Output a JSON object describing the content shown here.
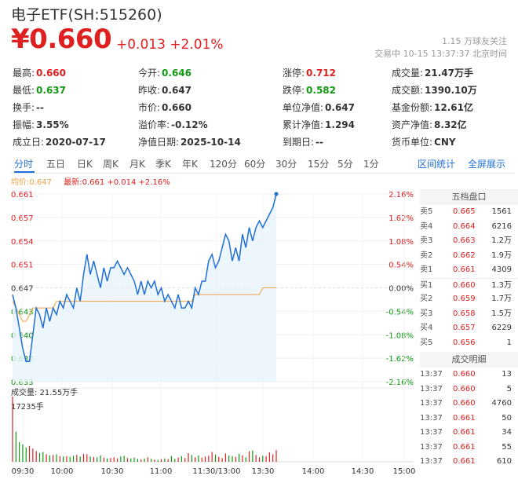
{
  "header": {
    "title": "电子ETF(SH:515260)",
    "price": "¥0.660",
    "change": "+0.013 +2.01%",
    "followers": "1.15 万球友关注",
    "trade_status": "交易中 10-15 13:37:37 北京时间"
  },
  "quote": {
    "rows": [
      [
        {
          "label": "最高:",
          "value": "0.660",
          "color": "red"
        },
        {
          "label": "今开:",
          "value": "0.646",
          "color": "green"
        },
        {
          "label": "涨停:",
          "value": "0.712",
          "color": "red"
        },
        {
          "label": "成交量:",
          "value": "21.47万手",
          "color": "normal"
        }
      ],
      [
        {
          "label": "最低:",
          "value": "0.637",
          "color": "green"
        },
        {
          "label": "昨收:",
          "value": "0.647",
          "color": "normal"
        },
        {
          "label": "跌停:",
          "value": "0.582",
          "color": "green"
        },
        {
          "label": "成交额:",
          "value": "1390.10万",
          "color": "normal"
        }
      ],
      [
        {
          "label": "换手:",
          "value": "--",
          "color": "normal"
        },
        {
          "label": "市价:",
          "value": "0.660",
          "color": "normal"
        },
        {
          "label": "单位净值:",
          "value": "0.647",
          "color": "normal"
        },
        {
          "label": "基金份额:",
          "value": "12.61亿",
          "color": "normal"
        }
      ],
      [
        {
          "label": "振幅:",
          "value": "3.55%",
          "color": "normal"
        },
        {
          "label": "溢价率:",
          "value": "-0.12%",
          "color": "normal"
        },
        {
          "label": "累计净值:",
          "value": "1.294",
          "color": "normal"
        },
        {
          "label": "资产净值:",
          "value": "8.32亿",
          "color": "normal"
        }
      ],
      [
        {
          "label": "成立日:",
          "value": "2020-07-17",
          "color": "normal"
        },
        {
          "label": "净值日期:",
          "value": "2025-10-14",
          "color": "normal"
        },
        {
          "label": "到期日:",
          "value": "--",
          "color": "normal"
        },
        {
          "label": "货币单位:",
          "value": "CNY",
          "color": "normal"
        }
      ]
    ]
  },
  "tabs": [
    "分时",
    "五日",
    "日K",
    "周K",
    "月K",
    "季K",
    "年K",
    "120分",
    "60分",
    "30分",
    "15分",
    "5分",
    "1分"
  ],
  "active_tab": "分时",
  "tab_links": [
    "区间统计",
    "全屏展示"
  ],
  "legend": {
    "avg": "均价:0.647",
    "latest_label": "最新:",
    "latest": "0.661 +0.014 +2.16%"
  },
  "colors": {
    "up": "#e02020",
    "down": "#119911",
    "line": "#1e6fd9",
    "avg": "#f0a040",
    "accent": "#1e6fd9"
  },
  "chart_data": {
    "type": "line",
    "y_ticks_left": [
      "0.661",
      "0.657",
      "0.654",
      "0.651",
      "0.647",
      "0.643",
      "0.640",
      "0.637",
      "0.633"
    ],
    "y_ticks_right": [
      "2.16%",
      "1.62%",
      "1.08%",
      "0.54%",
      "0.00%",
      "-0.54%",
      "-1.08%",
      "-1.62%",
      "-2.16%"
    ],
    "ylim": [
      0.633,
      0.661
    ],
    "x_ticks": [
      "09:30",
      "10:00",
      "10:30",
      "11:00",
      "11:30/13:00",
      "13:30",
      "14:00",
      "14:30",
      "15:00"
    ],
    "volume_label": "成交量: 21.55万手",
    "volume_max_label": "17235手",
    "series": [
      {
        "values": [
          0.646,
          0.644,
          0.641,
          0.638,
          0.636,
          0.636,
          0.64,
          0.644,
          0.643,
          0.641,
          0.644,
          0.642,
          0.644,
          0.643,
          0.645,
          0.644,
          0.646,
          0.645,
          0.644,
          0.647,
          0.645,
          0.649,
          0.652,
          0.649,
          0.651,
          0.649,
          0.647,
          0.65,
          0.648,
          0.65,
          0.65,
          0.651,
          0.65,
          0.649,
          0.65,
          0.649,
          0.648,
          0.646,
          0.648,
          0.646,
          0.648,
          0.647,
          0.648,
          0.646,
          0.647,
          0.645,
          0.646,
          0.645,
          0.644,
          0.646,
          0.644,
          0.644,
          0.645,
          0.644,
          0.647,
          0.646,
          0.648,
          0.648,
          0.651,
          0.652,
          0.65,
          0.651,
          0.653,
          0.655,
          0.654,
          0.651,
          0.653,
          0.651,
          0.655,
          0.653,
          0.656,
          0.654,
          0.656,
          0.657,
          0.656,
          0.657,
          0.658,
          0.659,
          0.661
        ]
      },
      {
        "values": [
          0.645,
          0.644,
          0.643,
          0.642,
          0.642,
          0.643,
          0.644,
          0.644,
          0.644,
          0.644,
          0.644,
          0.644,
          0.644,
          0.645,
          0.645,
          0.645,
          0.645,
          0.645,
          0.645,
          0.645,
          0.645,
          0.645,
          0.645,
          0.645,
          0.645,
          0.645,
          0.645,
          0.645,
          0.645,
          0.645,
          0.645,
          0.645,
          0.645,
          0.645,
          0.645,
          0.645,
          0.645,
          0.645,
          0.645,
          0.645,
          0.645,
          0.645,
          0.645,
          0.645,
          0.645,
          0.645,
          0.645,
          0.645,
          0.645,
          0.645,
          0.645,
          0.645,
          0.645,
          0.645,
          0.646,
          0.646,
          0.646,
          0.646,
          0.646,
          0.646,
          0.646,
          0.646,
          0.646,
          0.646,
          0.646,
          0.646,
          0.646,
          0.646,
          0.646,
          0.646,
          0.646,
          0.646,
          0.646,
          0.646,
          0.647,
          0.647,
          0.647,
          0.647,
          0.647
        ]
      }
    ],
    "volumes": [
      17235,
      8000,
      5200,
      4600,
      3800,
      4200,
      3500,
      2800,
      2300,
      2600,
      2000,
      1700,
      1800,
      2000,
      1500,
      1400,
      1500,
      1300,
      1600,
      1800,
      1400,
      2100,
      2000,
      1400,
      1300,
      1200,
      1700,
      1100,
      900,
      1000,
      1200,
      900,
      1400,
      1600,
      1000,
      900,
      1100,
      800,
      700,
      900,
      1200,
      800,
      600,
      500,
      700,
      900,
      700,
      1500,
      800,
      1100,
      1500,
      1000,
      2300,
      1800,
      1200,
      1700,
      1100,
      1400,
      1600,
      2600,
      1900,
      1300,
      1000,
      2200,
      1700,
      1500,
      1300,
      2100,
      1700,
      1200,
      2800,
      3000,
      1800,
      1200,
      1600,
      1500,
      2500,
      2000,
      3100
    ]
  },
  "orderbook": {
    "title": "五档盘口",
    "asks": [
      {
        "label": "卖5",
        "price": "0.665",
        "vol": "1561"
      },
      {
        "label": "卖4",
        "price": "0.664",
        "vol": "6216"
      },
      {
        "label": "卖3",
        "price": "0.663",
        "vol": "1.2万"
      },
      {
        "label": "卖2",
        "price": "0.662",
        "vol": "1.9万"
      },
      {
        "label": "卖1",
        "price": "0.661",
        "vol": "4309"
      }
    ],
    "bids": [
      {
        "label": "买1",
        "price": "0.660",
        "vol": "1.3万"
      },
      {
        "label": "买2",
        "price": "0.659",
        "vol": "1.7万"
      },
      {
        "label": "买3",
        "price": "0.658",
        "vol": "1.5万"
      },
      {
        "label": "买4",
        "price": "0.657",
        "vol": "6229"
      },
      {
        "label": "买5",
        "price": "0.656",
        "vol": "1"
      }
    ],
    "trades_title": "成交明细",
    "trades": [
      {
        "time": "13:37",
        "price": "0.660",
        "vol": "13"
      },
      {
        "time": "13:37",
        "price": "0.660",
        "vol": "5"
      },
      {
        "time": "13:37",
        "price": "0.660",
        "vol": "4760"
      },
      {
        "time": "13:37",
        "price": "0.661",
        "vol": "50"
      },
      {
        "time": "13:37",
        "price": "0.661",
        "vol": "34"
      },
      {
        "time": "13:37",
        "price": "0.661",
        "vol": "55"
      },
      {
        "time": "13:37",
        "price": "0.661",
        "vol": "610"
      }
    ]
  }
}
